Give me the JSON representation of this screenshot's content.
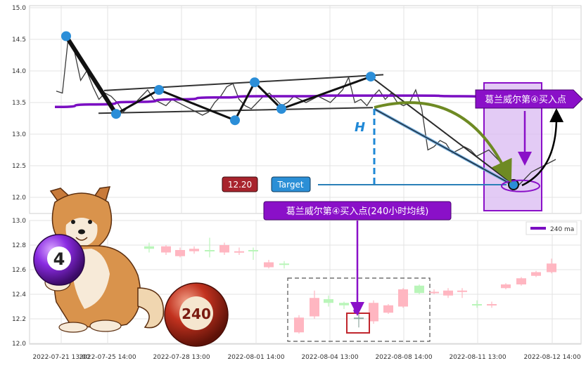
{
  "chart_data": [
    {
      "type": "line",
      "panel": "upper",
      "ylim": [
        12.0,
        15.0
      ],
      "y_ticks": [
        "15.0",
        "14.5",
        "14.0",
        "13.5",
        "13.0",
        "12.5",
        "12.0"
      ],
      "grid": true,
      "series": [
        {
          "values": [
            13.68,
            13.65,
            14.55,
            14.3,
            13.85,
            14.0,
            13.75,
            13.55,
            13.65,
            13.6,
            13.5,
            13.35,
            13.45,
            13.5,
            13.6,
            13.7,
            13.55,
            13.5,
            13.45,
            13.55,
            13.5,
            13.45,
            13.4,
            13.35,
            13.3,
            13.35,
            13.5,
            13.6,
            13.75,
            13.8,
            13.55,
            13.45,
            13.4,
            13.5,
            13.6,
            13.65,
            13.55,
            13.45,
            13.5,
            13.6,
            13.55,
            13.5,
            13.55,
            13.6,
            13.55,
            13.5,
            13.6,
            13.7,
            13.9,
            13.5,
            13.55,
            13.45,
            13.6,
            13.7,
            13.55,
            13.65,
            13.5,
            13.45,
            13.5,
            13.7,
            13.4,
            12.75,
            12.8,
            12.9,
            12.85,
            12.7,
            12.75,
            12.8,
            12.75,
            12.65,
            12.7,
            12.75,
            12.65,
            12.55,
            12.35,
            12.25,
            12.2,
            12.3,
            12.4,
            12.45,
            12.5,
            12.55,
            12.6
          ]
        },
        {
          "name": "240 ma",
          "values": [
            13.43,
            13.47,
            13.51,
            13.55,
            13.58,
            13.6,
            13.6,
            13.61,
            13.61,
            13.61,
            13.6,
            13.58,
            13.57,
            13.56
          ]
        }
      ],
      "pattern_points": [
        14.55,
        13.32,
        13.7,
        13.22,
        13.82,
        13.4,
        13.91,
        12.2
      ],
      "annotations": {
        "h_label": "H",
        "price_badge": "12.20",
        "target_badge": "Target",
        "signal_label": "葛兰威尔第④买入点"
      }
    },
    {
      "type": "candlestick",
      "panel": "lower",
      "ylim": [
        12.0,
        13.0
      ],
      "y_ticks": [
        "13.0",
        "12.8",
        "12.6",
        "12.4",
        "12.2",
        "12.0"
      ],
      "grid": true,
      "candles": [
        {
          "o": 12.77,
          "c": 12.79,
          "h": 12.82,
          "l": 12.74,
          "up": true
        },
        {
          "o": 12.79,
          "c": 12.74,
          "h": 12.8,
          "l": 12.72,
          "up": false
        },
        {
          "o": 12.76,
          "c": 12.71,
          "h": 12.78,
          "l": 12.7,
          "up": false
        },
        {
          "o": 12.75,
          "c": 12.77,
          "h": 12.79,
          "l": 12.73,
          "up": false
        },
        {
          "o": 12.75,
          "c": 12.76,
          "h": 12.86,
          "l": 12.7,
          "up": true
        },
        {
          "o": 12.8,
          "c": 12.74,
          "h": 12.82,
          "l": 12.72,
          "up": false
        },
        {
          "o": 12.75,
          "c": 12.75,
          "h": 12.78,
          "l": 12.72,
          "up": false
        },
        {
          "o": 12.75,
          "c": 12.76,
          "h": 12.78,
          "l": 12.68,
          "up": true
        },
        {
          "o": 12.66,
          "c": 12.62,
          "h": 12.68,
          "l": 12.61,
          "up": false
        },
        {
          "o": 12.65,
          "c": 12.64,
          "h": 12.67,
          "l": 12.61,
          "up": true
        },
        {
          "o": 12.21,
          "c": 12.09,
          "h": 12.23,
          "l": 12.08,
          "up": false
        },
        {
          "o": 12.37,
          "c": 12.22,
          "h": 12.43,
          "l": 12.2,
          "up": false
        },
        {
          "o": 12.33,
          "c": 12.36,
          "h": 12.39,
          "l": 12.3,
          "up": true
        },
        {
          "o": 12.31,
          "c": 12.33,
          "h": 12.34,
          "l": 12.28,
          "up": true
        },
        {
          "o": 12.21,
          "c": 12.2,
          "h": 12.24,
          "l": 12.13,
          "up": false
        },
        {
          "o": 12.33,
          "c": 12.18,
          "h": 12.35,
          "l": 12.16,
          "up": false
        },
        {
          "o": 12.31,
          "c": 12.25,
          "h": 12.32,
          "l": 12.24,
          "up": false
        },
        {
          "o": 12.44,
          "c": 12.3,
          "h": 12.45,
          "l": 12.29,
          "up": false
        },
        {
          "o": 12.41,
          "c": 12.47,
          "h": 12.48,
          "l": 12.4,
          "up": true
        },
        {
          "o": 12.42,
          "c": 12.42,
          "h": 12.44,
          "l": 12.4,
          "up": false
        },
        {
          "o": 12.43,
          "c": 12.39,
          "h": 12.45,
          "l": 12.37,
          "up": false
        },
        {
          "o": 12.43,
          "c": 12.43,
          "h": 12.45,
          "l": 12.37,
          "up": false
        },
        {
          "o": 12.32,
          "c": 12.32,
          "h": 12.35,
          "l": 12.29,
          "up": true
        },
        {
          "o": 12.32,
          "c": 12.32,
          "h": 12.34,
          "l": 12.29,
          "up": false
        },
        {
          "o": 12.48,
          "c": 12.45,
          "h": 12.49,
          "l": 12.44,
          "up": false
        },
        {
          "o": 12.53,
          "c": 12.48,
          "h": 12.54,
          "l": 12.47,
          "up": false
        },
        {
          "o": 12.58,
          "c": 12.55,
          "h": 12.59,
          "l": 12.54,
          "up": false
        },
        {
          "o": 12.65,
          "c": 12.58,
          "h": 12.69,
          "l": 12.57,
          "up": false
        }
      ],
      "legend": "240 ma",
      "annotation": "葛兰威尔第④买入点(240小时均线)"
    }
  ],
  "x_ticks": [
    "2022-07-21 13:00",
    "2022-07-25 14:00",
    "2022-07-28 13:00",
    "2022-08-01 14:00",
    "2022-08-04 13:00",
    "2022-08-08 14:00",
    "2022-08-11 13:00",
    "2022-08-12 14:00"
  ],
  "illustration": {
    "ball_4_label": "4",
    "ball_240_label": "240"
  },
  "colors": {
    "price_line": "#3a3a3a",
    "ma_line": "#7a0ec2",
    "pattern": "#111111",
    "pattern_point": "#2b8ed8",
    "target_line": "#2a7fb8",
    "h_line": "#1f88d6",
    "badge_price": "#a8242d",
    "badge_target": "#2b8fd6",
    "signal": "#8a10c8",
    "arrow_green": "#6e8a23",
    "up_candle": "#b9f5b9",
    "down_candle": "#ffb6c1",
    "signal_candle": "#8fa8a0"
  }
}
